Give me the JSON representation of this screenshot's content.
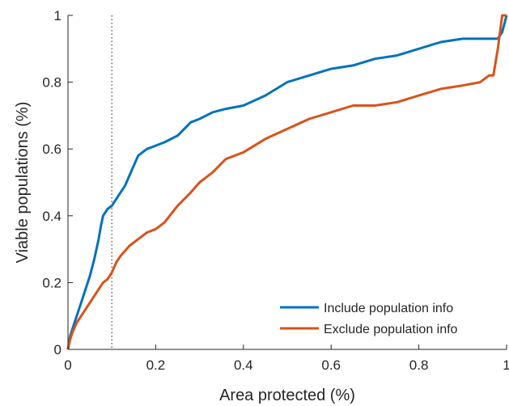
{
  "chart_data": {
    "type": "line",
    "title": "",
    "xlabel": "Area protected (%)",
    "ylabel": "Viable populations (%)",
    "xlim": [
      0,
      1
    ],
    "ylim": [
      0,
      1
    ],
    "xticks": [
      0,
      0.2,
      0.4,
      0.6,
      0.8,
      1
    ],
    "yticks": [
      0,
      0.2,
      0.4,
      0.6,
      0.8,
      1
    ],
    "xtick_labels": [
      "0",
      "0.2",
      "0.4",
      "0.6",
      "0.8",
      "1"
    ],
    "ytick_labels": [
      "0",
      "0.2",
      "0.4",
      "0.6",
      "0.8",
      "1"
    ],
    "grid": false,
    "legend_position": "bottom-right",
    "reference_line": {
      "x": 0.1,
      "style": "dotted",
      "color": "#404040"
    },
    "series": [
      {
        "name": "Include population info",
        "color": "#0072BD",
        "x": [
          0,
          0.005,
          0.01,
          0.02,
          0.03,
          0.04,
          0.05,
          0.06,
          0.07,
          0.075,
          0.08,
          0.085,
          0.09,
          0.1,
          0.11,
          0.12,
          0.13,
          0.14,
          0.15,
          0.16,
          0.17,
          0.18,
          0.2,
          0.22,
          0.25,
          0.28,
          0.3,
          0.33,
          0.36,
          0.4,
          0.45,
          0.5,
          0.55,
          0.6,
          0.65,
          0.7,
          0.75,
          0.8,
          0.85,
          0.9,
          0.95,
          0.98,
          0.99,
          1
        ],
        "y": [
          0,
          0.04,
          0.06,
          0.1,
          0.14,
          0.18,
          0.22,
          0.27,
          0.33,
          0.37,
          0.4,
          0.41,
          0.42,
          0.43,
          0.45,
          0.47,
          0.49,
          0.52,
          0.55,
          0.58,
          0.59,
          0.6,
          0.61,
          0.62,
          0.64,
          0.68,
          0.69,
          0.71,
          0.72,
          0.73,
          0.76,
          0.8,
          0.82,
          0.84,
          0.85,
          0.87,
          0.88,
          0.9,
          0.92,
          0.93,
          0.93,
          0.93,
          0.95,
          1
        ]
      },
      {
        "name": "Exclude population info",
        "color": "#D95319",
        "x": [
          0,
          0.005,
          0.01,
          0.02,
          0.03,
          0.04,
          0.05,
          0.06,
          0.07,
          0.08,
          0.09,
          0.1,
          0.11,
          0.12,
          0.14,
          0.16,
          0.18,
          0.2,
          0.22,
          0.25,
          0.28,
          0.3,
          0.33,
          0.36,
          0.4,
          0.45,
          0.5,
          0.55,
          0.6,
          0.65,
          0.7,
          0.75,
          0.8,
          0.85,
          0.9,
          0.94,
          0.96,
          0.97,
          0.98,
          0.99,
          1
        ],
        "y": [
          0,
          0.03,
          0.05,
          0.08,
          0.1,
          0.12,
          0.14,
          0.16,
          0.18,
          0.2,
          0.21,
          0.23,
          0.26,
          0.28,
          0.31,
          0.33,
          0.35,
          0.36,
          0.38,
          0.43,
          0.47,
          0.5,
          0.53,
          0.57,
          0.59,
          0.63,
          0.66,
          0.69,
          0.71,
          0.73,
          0.73,
          0.74,
          0.76,
          0.78,
          0.79,
          0.8,
          0.82,
          0.82,
          0.9,
          1,
          1
        ]
      }
    ]
  }
}
